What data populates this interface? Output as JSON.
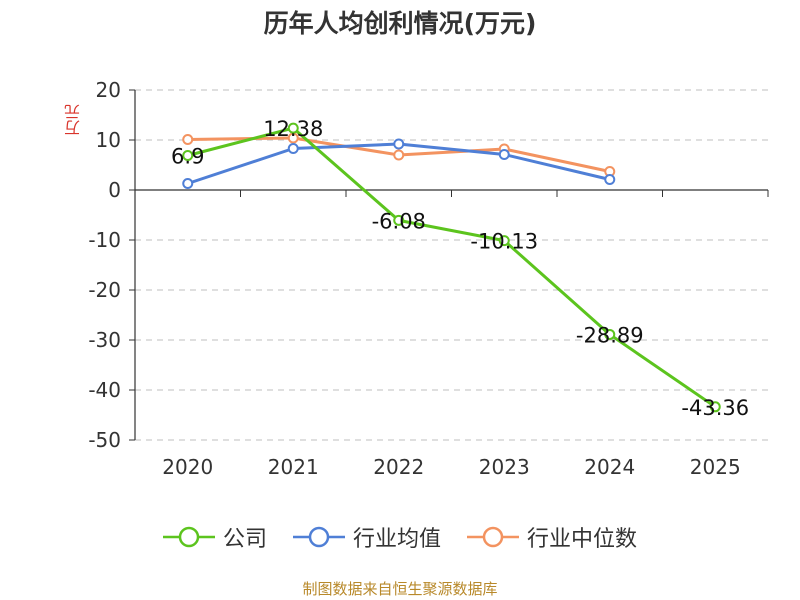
{
  "chart_data": {
    "type": "line",
    "title": "历年人均创利情况(万元)",
    "ylabel": "万元",
    "xlabel": "",
    "categories": [
      "2020",
      "2021",
      "2022",
      "2023",
      "2024",
      "2025"
    ],
    "ylim": [
      -50,
      20
    ],
    "yticks": [
      20,
      10,
      0,
      -10,
      -20,
      -30,
      -40,
      -50
    ],
    "grid": true,
    "legend_position": "bottom",
    "series": [
      {
        "name": "公司",
        "color": "#5cc41e",
        "values": [
          6.9,
          12.38,
          -6.08,
          -10.13,
          -28.89,
          -43.36
        ],
        "labels": [
          "6.9",
          "12.38",
          "-6.08",
          "-10.13",
          "-28.89",
          "-43.36"
        ]
      },
      {
        "name": "行业均值",
        "color": "#4f7fd6",
        "values": [
          1.3,
          8.3,
          9.2,
          7.1,
          2.1,
          null
        ]
      },
      {
        "name": "行业中位数",
        "color": "#f39360",
        "values": [
          10.1,
          10.4,
          7.0,
          8.2,
          3.7,
          null
        ]
      }
    ]
  },
  "source": "制图数据来自恒生聚源数据库"
}
